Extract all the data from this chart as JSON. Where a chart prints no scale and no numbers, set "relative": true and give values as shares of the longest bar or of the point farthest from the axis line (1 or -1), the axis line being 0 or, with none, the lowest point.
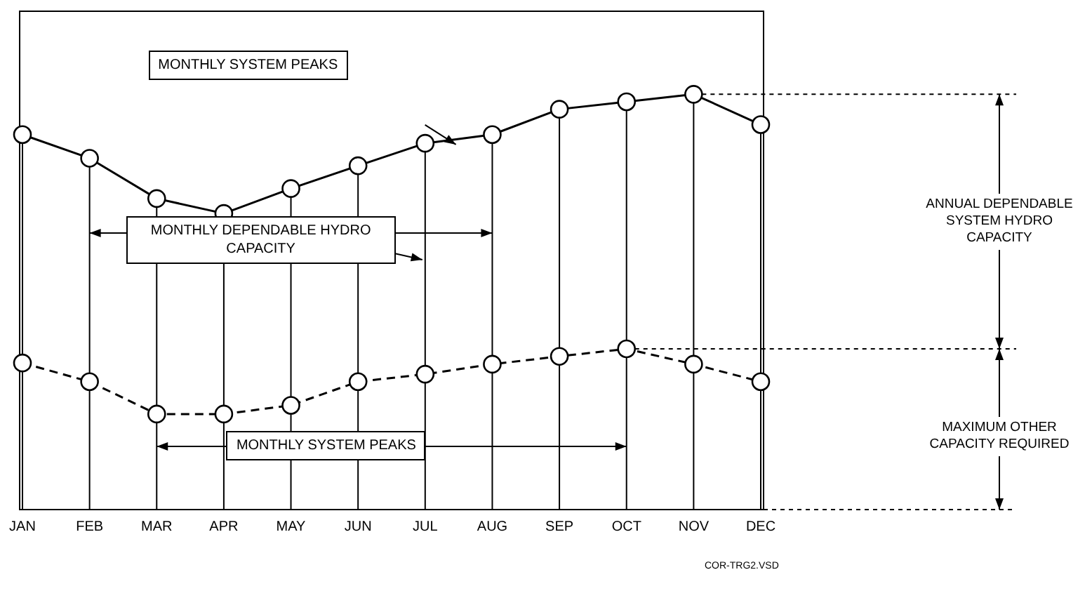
{
  "chart_data": {
    "type": "line",
    "relative": true,
    "categories": [
      "JAN",
      "FEB",
      "MAR",
      "APR",
      "MAY",
      "JUN",
      "JUL",
      "AUG",
      "SEP",
      "OCT",
      "NOV",
      "DEC"
    ],
    "series": [
      {
        "color": "#000000",
        "line_style": "solid",
        "values": [
          0.903,
          0.846,
          0.749,
          0.713,
          0.773,
          0.828,
          0.882,
          0.903,
          0.964,
          0.982,
          1,
          0.927
        ]
      },
      {
        "color": "#000000",
        "line_style": "dashed",
        "values": [
          0.353,
          0.308,
          0.23,
          0.23,
          0.251,
          0.308,
          0.326,
          0.35,
          0.369,
          0.387,
          0.35,
          0.308
        ]
      }
    ],
    "marker": "circle",
    "legend": false,
    "grid": "x",
    "tick_labels": "x",
    "ref_lines": [
      {
        "axis": "y",
        "value": 1,
        "line_style": "dashed"
      },
      {
        "axis": "y",
        "value": 0.387,
        "line_style": "dashed"
      },
      {
        "axis": "y",
        "value": 0,
        "line_style": "dashed"
      }
    ],
    "annotations": [
      "MONTHLY SYSTEM PEAKS",
      "MONTHLY DEPENDABLE HYDRO CAPACITY",
      "MONTHLY SYSTEM PEAKS",
      "ANNUAL DEPENDABLE SYSTEM HYDRO CAPACITY",
      "MAXIMUM OTHER CAPACITY REQUIRED",
      "COR-TRG2.VSD"
    ]
  }
}
